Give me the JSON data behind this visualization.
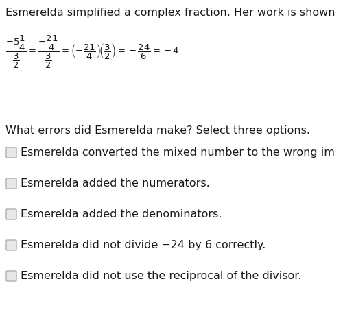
{
  "header": "Esmerelda simplified a complex fraction. Her work is shown",
  "math_expr": "$\\dfrac{-5\\dfrac{1}{4}}{\\dfrac{3}{2}} = \\dfrac{-\\dfrac{21}{4}}{\\dfrac{3}{2}} = \\left(-\\dfrac{21}{4}\\right)\\!\\left(\\dfrac{3}{2}\\right) = -\\dfrac{24}{6} = -4$",
  "question": "What errors did Esmerelda make? Select three options.",
  "options": [
    "Esmerelda converted the mixed number to the wrong im",
    "Esmerelda added the numerators.",
    "Esmerelda added the denominators.",
    "Esmerelda did not divide −24 by 6 correctly.",
    "Esmerelda did not use the reciprocal of the divisor."
  ],
  "bg_color": "#ffffff",
  "text_color": "#1a1a1a",
  "header_fontsize": 11.5,
  "body_fontsize": 11.5,
  "math_fontsize": 9.5,
  "checkbox_edge": "#b0b0b0",
  "checkbox_face": "#e8e8e8"
}
